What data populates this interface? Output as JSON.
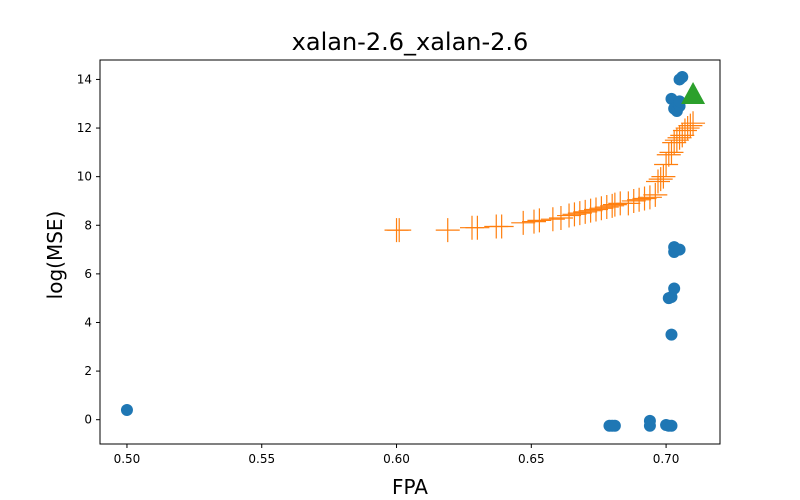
{
  "chart_data": {
    "type": "scatter",
    "title": "xalan-2.6_xalan-2.6",
    "xlabel": "FPA",
    "ylabel": "log(MSE)",
    "xlim": [
      0.49,
      0.72
    ],
    "ylim": [
      -1.0,
      14.8
    ],
    "xticks": [
      "0.50",
      "0.55",
      "0.60",
      "0.65",
      "0.70"
    ],
    "yticks": [
      "0",
      "2",
      "4",
      "6",
      "8",
      "10",
      "12",
      "14"
    ],
    "grid": false,
    "legend": "none",
    "series": [
      {
        "marker": "circle",
        "color": "#1f77b4",
        "points": [
          [
            0.5,
            0.4
          ],
          [
            0.679,
            -0.25
          ],
          [
            0.68,
            -0.25
          ],
          [
            0.681,
            -0.25
          ],
          [
            0.694,
            -0.05
          ],
          [
            0.694,
            -0.25
          ],
          [
            0.7,
            -0.22
          ],
          [
            0.701,
            -0.25
          ],
          [
            0.702,
            -0.25
          ],
          [
            0.702,
            3.5
          ],
          [
            0.701,
            5.0
          ],
          [
            0.702,
            5.05
          ],
          [
            0.703,
            5.4
          ],
          [
            0.703,
            6.9
          ],
          [
            0.703,
            7.1
          ],
          [
            0.705,
            7.0
          ],
          [
            0.702,
            13.2
          ],
          [
            0.703,
            12.8
          ],
          [
            0.704,
            12.7
          ],
          [
            0.705,
            12.9
          ],
          [
            0.705,
            13.1
          ],
          [
            0.705,
            14.0
          ],
          [
            0.706,
            14.1
          ]
        ]
      },
      {
        "marker": "plus",
        "color": "#ff7f0e",
        "points": [
          [
            0.6,
            7.8
          ],
          [
            0.601,
            7.8
          ],
          [
            0.619,
            7.8
          ],
          [
            0.628,
            7.9
          ],
          [
            0.63,
            7.9
          ],
          [
            0.637,
            7.95
          ],
          [
            0.639,
            7.95
          ],
          [
            0.647,
            8.1
          ],
          [
            0.651,
            8.15
          ],
          [
            0.653,
            8.2
          ],
          [
            0.658,
            8.25
          ],
          [
            0.661,
            8.3
          ],
          [
            0.664,
            8.4
          ],
          [
            0.666,
            8.45
          ],
          [
            0.668,
            8.5
          ],
          [
            0.67,
            8.55
          ],
          [
            0.672,
            8.6
          ],
          [
            0.674,
            8.65
          ],
          [
            0.676,
            8.7
          ],
          [
            0.678,
            8.75
          ],
          [
            0.68,
            8.8
          ],
          [
            0.681,
            8.85
          ],
          [
            0.683,
            8.9
          ],
          [
            0.686,
            8.9
          ],
          [
            0.688,
            9.0
          ],
          [
            0.69,
            9.05
          ],
          [
            0.692,
            9.1
          ],
          [
            0.694,
            9.15
          ],
          [
            0.696,
            9.25
          ],
          [
            0.697,
            9.8
          ],
          [
            0.698,
            9.9
          ],
          [
            0.699,
            10.0
          ],
          [
            0.7,
            10.5
          ],
          [
            0.701,
            10.9
          ],
          [
            0.702,
            11.0
          ],
          [
            0.703,
            11.4
          ],
          [
            0.704,
            11.5
          ],
          [
            0.705,
            11.6
          ],
          [
            0.706,
            11.7
          ],
          [
            0.707,
            11.9
          ],
          [
            0.708,
            12.0
          ],
          [
            0.709,
            12.1
          ],
          [
            0.71,
            12.2
          ]
        ]
      },
      {
        "marker": "triangle",
        "color": "#2ca02c",
        "points": [
          [
            0.71,
            13.4
          ]
        ]
      }
    ]
  }
}
